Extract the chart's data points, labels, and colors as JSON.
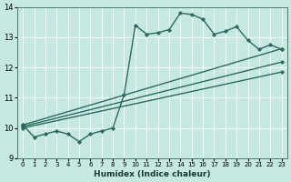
{
  "xlabel": "Humidex (Indice chaleur)",
  "bg_color": "#c5e8e2",
  "grid_color": "#ffffff",
  "line_color": "#2b6b5e",
  "xlim": [
    -0.5,
    23.5
  ],
  "ylim": [
    9.0,
    14.0
  ],
  "yticks": [
    9,
    10,
    11,
    12,
    13,
    14
  ],
  "xticks": [
    0,
    1,
    2,
    3,
    4,
    5,
    6,
    7,
    8,
    9,
    10,
    11,
    12,
    13,
    14,
    15,
    16,
    17,
    18,
    19,
    20,
    21,
    22,
    23
  ],
  "main_x": [
    0,
    1,
    2,
    3,
    4,
    5,
    6,
    7,
    8,
    9,
    10,
    11,
    12,
    13,
    14,
    15,
    16,
    17,
    18,
    19,
    20,
    21,
    22,
    23
  ],
  "main_y": [
    10.1,
    9.7,
    9.8,
    9.9,
    9.8,
    9.55,
    9.8,
    9.9,
    10.0,
    11.1,
    13.4,
    13.1,
    13.15,
    13.25,
    13.8,
    13.75,
    13.6,
    13.1,
    13.2,
    13.35,
    12.9,
    12.6,
    12.75,
    12.6
  ],
  "straight_lines": [
    {
      "x": [
        0,
        23
      ],
      "y": [
        10.1,
        12.62
      ]
    },
    {
      "x": [
        0,
        23
      ],
      "y": [
        10.05,
        12.18
      ]
    },
    {
      "x": [
        0,
        23
      ],
      "y": [
        10.0,
        11.85
      ]
    }
  ],
  "figsize": [
    3.2,
    2.0
  ],
  "dpi": 100
}
